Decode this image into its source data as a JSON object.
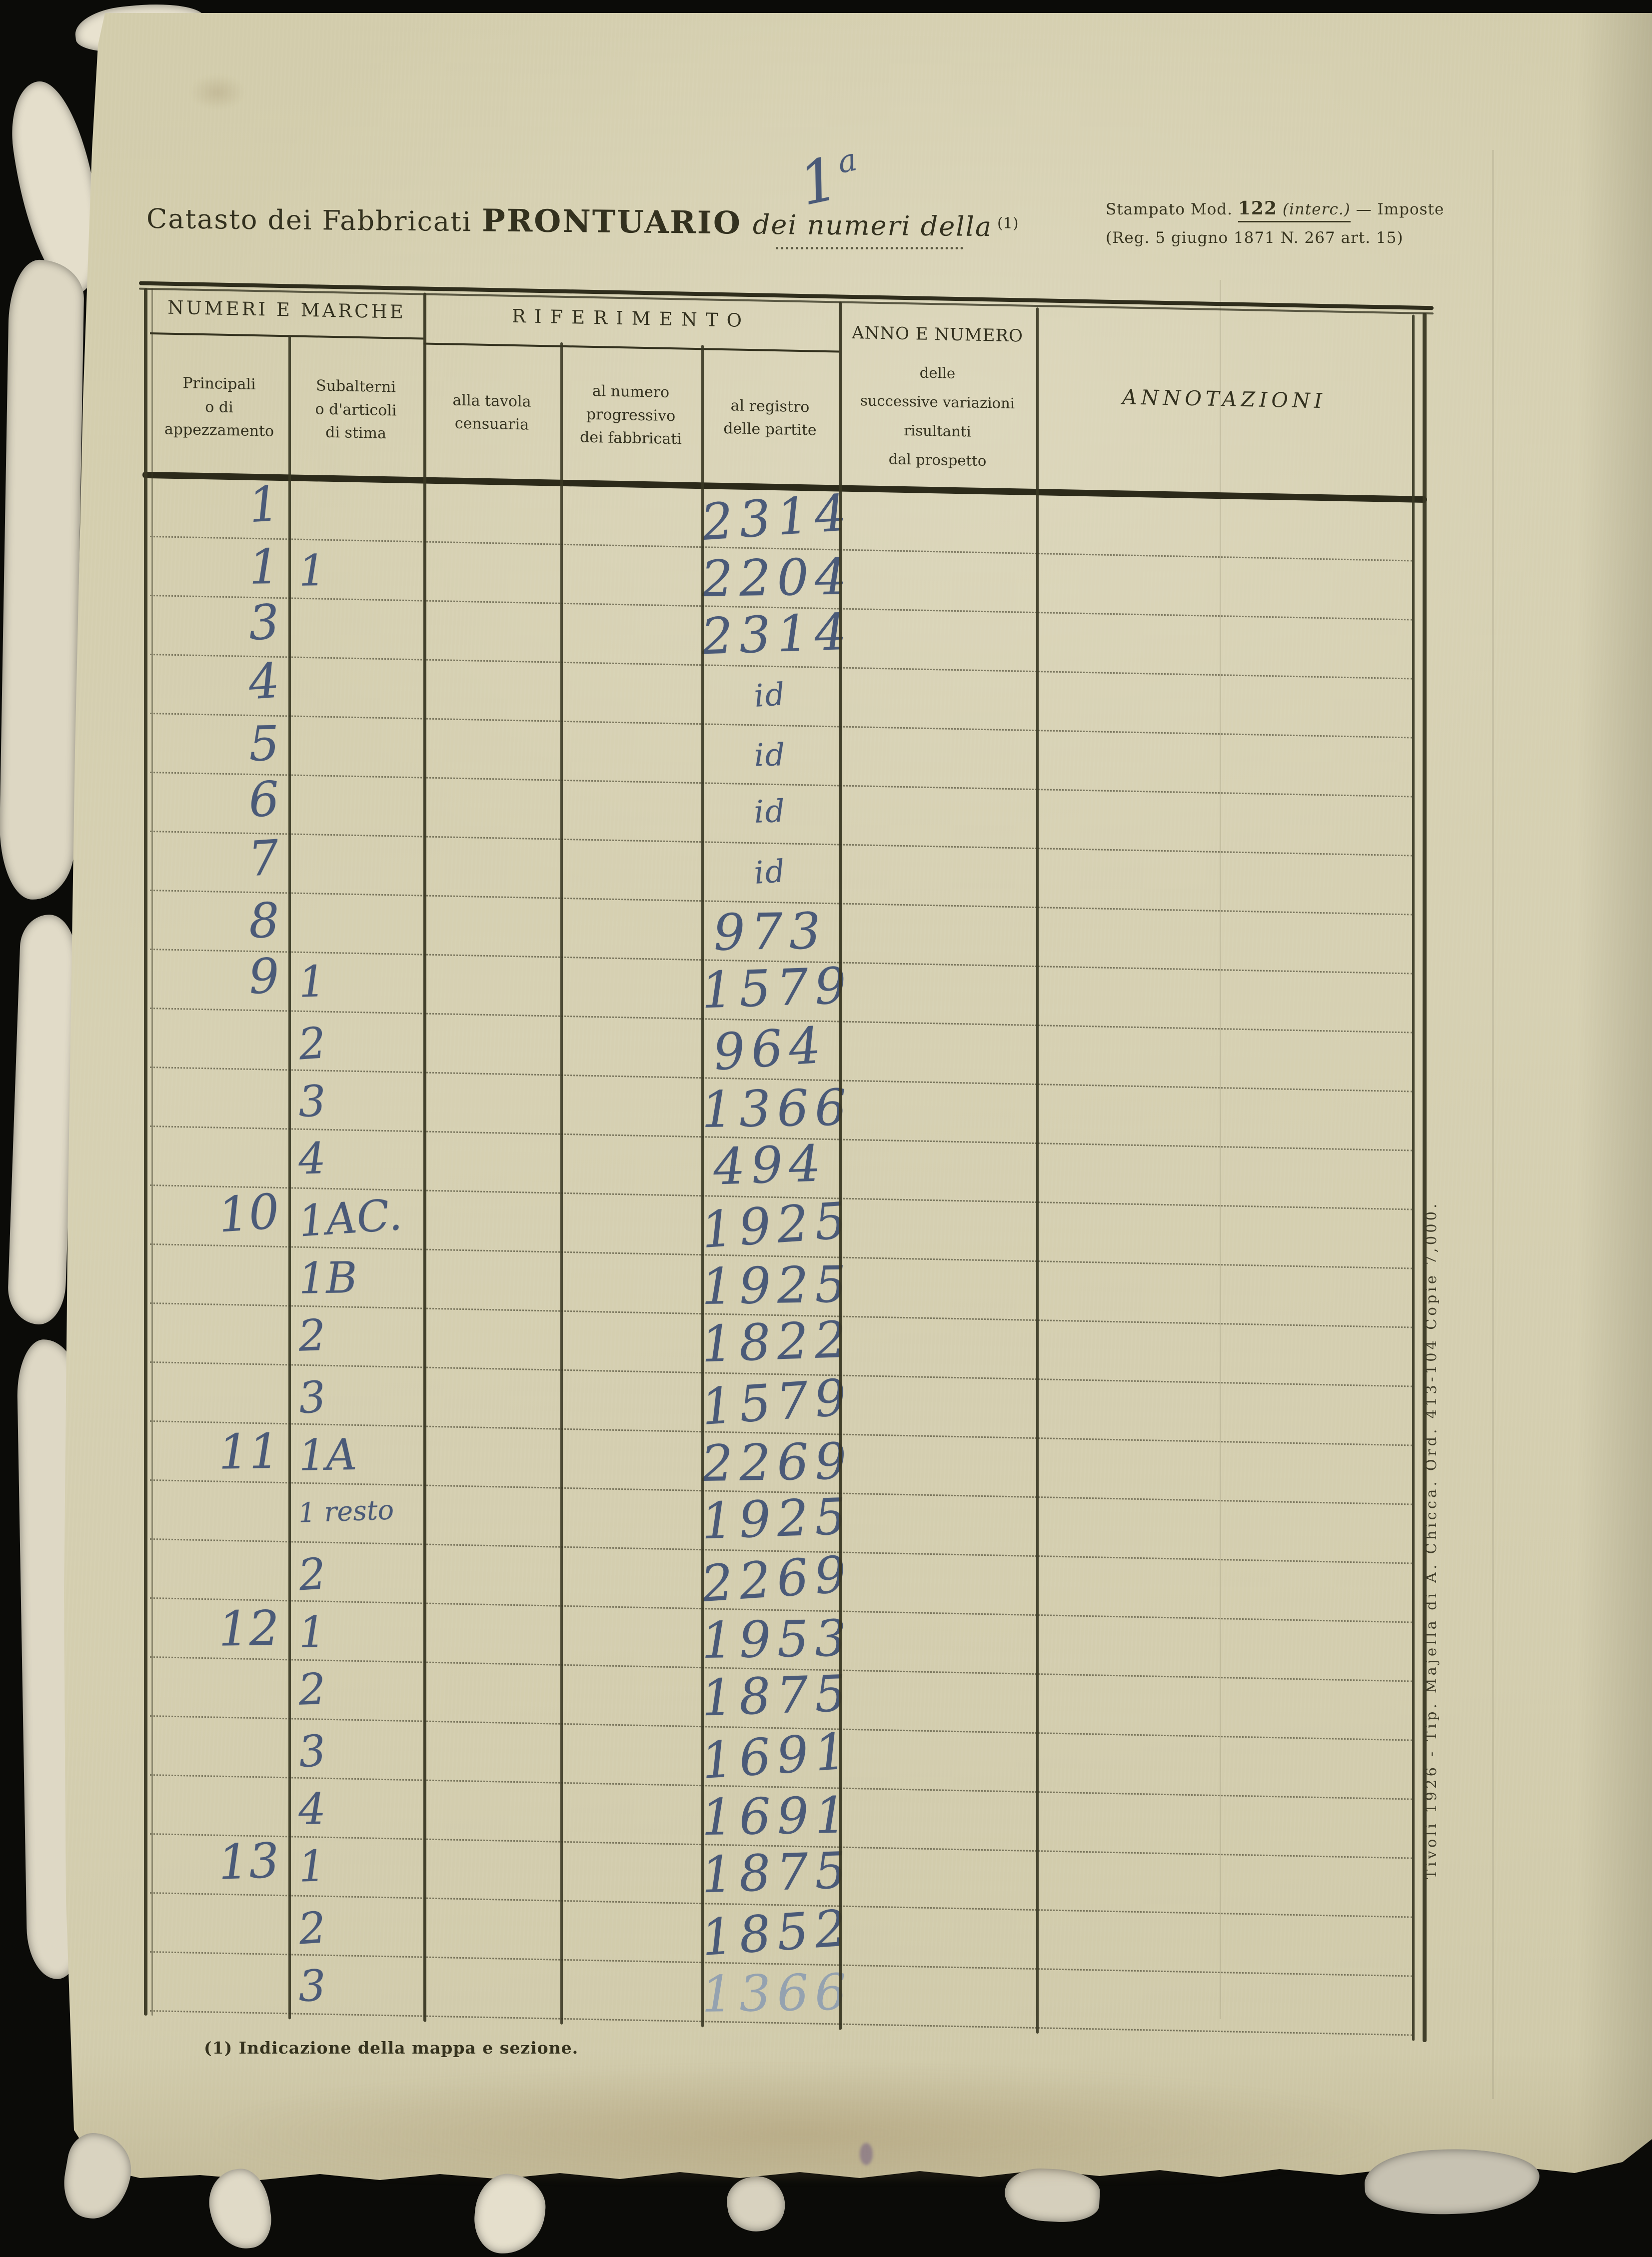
{
  "title": {
    "prefix": "Catasto dei Fabbricati",
    "emphasis": "PRONTUARIO",
    "suffix": "dei numeri della",
    "note_ref": "(1)",
    "handwritten_number": "1",
    "handwritten_exponent": "a"
  },
  "stamp": {
    "line1_label": "Stampato Mod.",
    "line1_model": "122",
    "line1_interc": "(interc.)",
    "line1_tail": "— Imposte",
    "line2": "(Reg. 5 giugno 1871 N. 267 art. 15)"
  },
  "table": {
    "group1": "NUMERI E MARCHE",
    "group2": "RIFERIMENTO",
    "col_principali": "Principali\no di\nappezzamento",
    "col_subalterni": "Subalterni\no d'articoli\ndi stima",
    "col_tavola": "alla tavola\ncensuaria",
    "col_progressivo": "al numero\nprogressivo\ndei fabbricati",
    "col_registro": "al registro\ndelle partite",
    "col_anno_title": "ANNO E NUMERO",
    "col_anno_sub": "delle\nsuccessive variazioni\nrisultanti\ndal prospetto",
    "col_annotazioni": "ANNOTAZIONI",
    "rows": [
      {
        "principale": "1",
        "subalterno": "",
        "registro": "2314"
      },
      {
        "principale": "1",
        "subalterno": "1",
        "registro": "2204"
      },
      {
        "principale": "3",
        "subalterno": "",
        "registro": "2314"
      },
      {
        "principale": "4",
        "subalterno": "",
        "registro": "id"
      },
      {
        "principale": "5",
        "subalterno": "",
        "registro": "id"
      },
      {
        "principale": "6",
        "subalterno": "",
        "registro": "id"
      },
      {
        "principale": "7",
        "subalterno": "",
        "registro": "id"
      },
      {
        "principale": "8",
        "subalterno": "",
        "registro": "973"
      },
      {
        "principale": "9",
        "subalterno": "1",
        "registro": "1579"
      },
      {
        "principale": "",
        "subalterno": "2",
        "registro": "964"
      },
      {
        "principale": "",
        "subalterno": "3",
        "registro": "1366"
      },
      {
        "principale": "",
        "subalterno": "4",
        "registro": "494"
      },
      {
        "principale": "10",
        "subalterno": "1AC.",
        "registro": "1925"
      },
      {
        "principale": "",
        "subalterno": "1B",
        "registro": "1925"
      },
      {
        "principale": "",
        "subalterno": "2",
        "registro": "1822"
      },
      {
        "principale": "",
        "subalterno": "3",
        "registro": "1579"
      },
      {
        "principale": "11",
        "subalterno": "1A",
        "registro": "2269"
      },
      {
        "principale": "",
        "subalterno": "1 resto",
        "registro": "1925"
      },
      {
        "principale": "",
        "subalterno": "2",
        "registro": "2269"
      },
      {
        "principale": "12",
        "subalterno": "1",
        "registro": "1953"
      },
      {
        "principale": "",
        "subalterno": "2",
        "registro": "1875"
      },
      {
        "principale": "",
        "subalterno": "3",
        "registro": "1691"
      },
      {
        "principale": "",
        "subalterno": "4",
        "registro": "1691"
      },
      {
        "principale": "13",
        "subalterno": "1",
        "registro": "1875"
      },
      {
        "principale": "",
        "subalterno": "2",
        "registro": "1852"
      },
      {
        "principale": "",
        "subalterno": "3",
        "registro": "1366",
        "ink": "light"
      }
    ]
  },
  "footnote": "(1) Indicazione della mappa e sezione.",
  "imprint": "Tivoli 1926 - Tip. Majella di A. Chicca. Ord. 413-104 Copie 7,000.",
  "colors": {
    "scan_background": "#0b0b08",
    "paper": "#d4ceae",
    "print_ink": "#33311f",
    "hand_ink": "#4a5a78",
    "hand_ink_faded": "#7d91b2"
  }
}
